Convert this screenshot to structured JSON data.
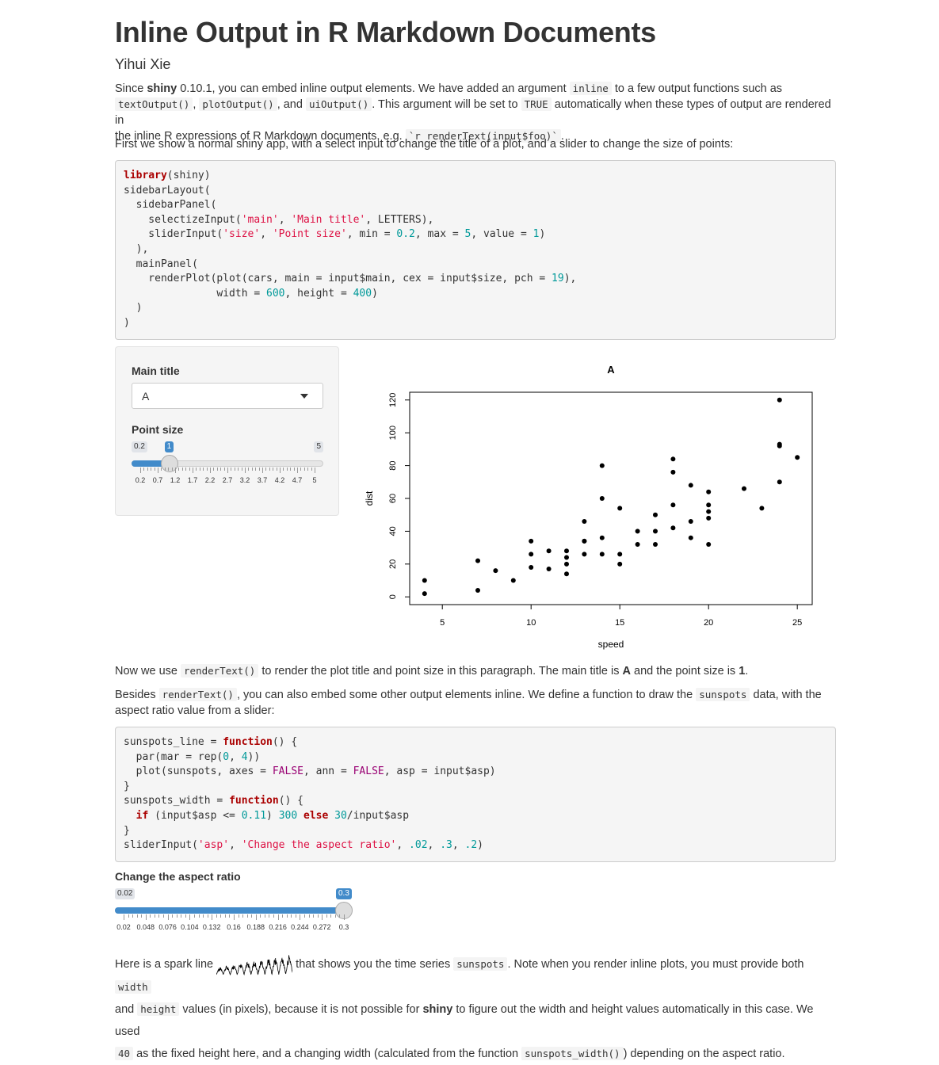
{
  "header": {
    "title": "Inline Output in R Markdown Documents",
    "author": "Yihui Xie"
  },
  "intro": {
    "t1": "Since ",
    "shiny": "shiny",
    "t2": " 0.10.1, you can embed inline output elements. We have added an argument ",
    "c_inline": "inline",
    "t3": " to a few output functions such as",
    "c_textOutput": "textOutput()",
    "t4": ", ",
    "c_plotOutput": "plotOutput()",
    "t5": ", and ",
    "c_uiOutput": "uiOutput()",
    "t6": ". This argument will be set to ",
    "c_TRUE": "TRUE",
    "t7": " automatically when these types of output are rendered in",
    "t8": "the inline R expressions of R Markdown documents, e.g. ",
    "c_expr": "`r renderText(input$foo)`",
    "t9": "."
  },
  "para2": "First we show a normal shiny app, with a select input to change the title of a plot, and a slider to change the size of points:",
  "app": {
    "main_label": "Main title",
    "main_value": "A",
    "size_label": "Point size",
    "size_min": "0.2",
    "size_max": "5",
    "size_value": "1",
    "size_fraction": 0.1667,
    "size_ticks": [
      "0.2",
      "0.7",
      "1.2",
      "1.7",
      "2.2",
      "2.7",
      "3.2",
      "3.7",
      "4.2",
      "4.7",
      "5"
    ]
  },
  "chart_data": {
    "type": "scatter",
    "title": "A",
    "xlabel": "speed",
    "ylabel": "dist",
    "xlim": [
      4,
      25
    ],
    "ylim": [
      0,
      120
    ],
    "xticks": [
      "5",
      "10",
      "15",
      "20",
      "25"
    ],
    "yticks": [
      "0",
      "20",
      "40",
      "60",
      "80",
      "100",
      "120"
    ],
    "x": [
      4,
      4,
      7,
      7,
      8,
      9,
      10,
      10,
      10,
      11,
      11,
      12,
      12,
      12,
      12,
      13,
      13,
      13,
      13,
      14,
      14,
      14,
      14,
      15,
      15,
      15,
      16,
      16,
      17,
      17,
      17,
      18,
      18,
      18,
      18,
      19,
      19,
      19,
      20,
      20,
      20,
      20,
      20,
      22,
      23,
      24,
      24,
      24,
      24,
      25
    ],
    "y": [
      2,
      10,
      4,
      22,
      16,
      10,
      18,
      26,
      34,
      17,
      28,
      14,
      20,
      24,
      28,
      26,
      34,
      34,
      46,
      26,
      36,
      60,
      80,
      20,
      26,
      54,
      32,
      40,
      32,
      40,
      50,
      42,
      56,
      76,
      84,
      36,
      46,
      68,
      32,
      48,
      52,
      56,
      64,
      66,
      54,
      70,
      92,
      93,
      120,
      85
    ]
  },
  "para3": {
    "t1": "Now we use ",
    "c_renderText": "renderText()",
    "t2": " to render the plot title and point size in this paragraph. The main title is ",
    "main": "A",
    "t3": " and the point size is ",
    "size": "1",
    "t4": "."
  },
  "para4": {
    "t1": "Besides ",
    "c_renderText": "renderText()",
    "t2": ", you can also embed some other output elements inline. We define a function to draw the ",
    "c_sunspots": "sunspots",
    "t3": " data, with the",
    "t4": "aspect ratio value from a slider:"
  },
  "asp": {
    "label": "Change the aspect ratio",
    "min": "0.02",
    "max": "0.3",
    "value": "0.3",
    "fraction": 1.0,
    "ticks": [
      "0.02",
      "0.048",
      "0.076",
      "0.104",
      "0.132",
      "0.16",
      "0.188",
      "0.216",
      "0.244",
      "0.272",
      "0.3"
    ]
  },
  "para5": {
    "t1": "Here is a spark line ",
    "t2": " that shows you the time series ",
    "c_sunspots": "sunspots",
    "t3": ". Note when you render inline plots, you must provide both ",
    "c_width": "width",
    "t4": "and ",
    "c_height": "height",
    "t5": " values (in pixels), because it is not possible for ",
    "shiny": "shiny",
    "t6": " to figure out the width and height values automatically in this case. We used",
    "c_40": "40",
    "t7": " as the fixed height here, and a changing width (calculated from the function ",
    "c_fn": "sunspots_width()",
    "t8": ") depending on the aspect ratio."
  }
}
